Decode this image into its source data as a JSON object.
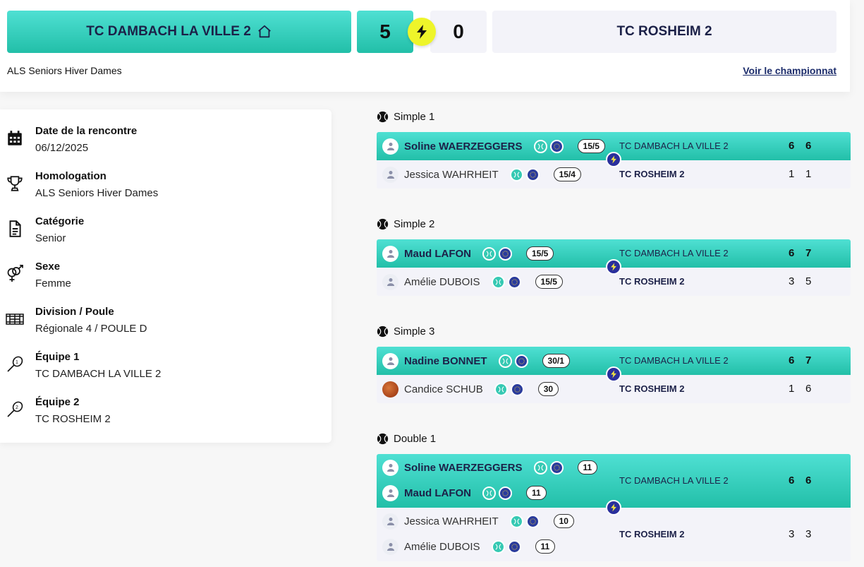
{
  "header": {
    "home_team": "TC DAMBACH LA VILLE 2",
    "away_team": "TC ROSHEIM 2",
    "home_score": "5",
    "away_score": "0",
    "competition": "ALS Seniors Hiver Dames",
    "championship_link": "Voir le championnat"
  },
  "info": [
    {
      "title": "Date de la rencontre",
      "value": "06/12/2025",
      "icon": "calendar-icon"
    },
    {
      "title": "Homologation",
      "value": "ALS Seniors Hiver Dames",
      "icon": "trophy-icon"
    },
    {
      "title": "Catégorie",
      "value": "Senior",
      "icon": "document-icon"
    },
    {
      "title": "Sexe",
      "value": "Femme",
      "icon": "gender-icon"
    },
    {
      "title": "Division / Poule",
      "value": "Régionale 4 / POULE D",
      "icon": "court-icon"
    },
    {
      "title": "Équipe 1",
      "value": "TC DAMBACH LA VILLE 2",
      "icon": "racket-1-icon"
    },
    {
      "title": "Équipe 2",
      "value": "TC ROSHEIM 2",
      "icon": "racket-2-icon"
    }
  ],
  "matches": [
    {
      "title": "Simple 1",
      "winner": {
        "players": [
          {
            "name": "Soline WAERZEGGERS",
            "rank": "15/5"
          }
        ],
        "club": "TC DAMBACH LA VILLE 2",
        "sets": [
          "6",
          "6"
        ]
      },
      "loser": {
        "players": [
          {
            "name": "Jessica WAHRHEIT",
            "rank": "15/4"
          }
        ],
        "club": "TC ROSHEIM 2",
        "sets": [
          "1",
          "1"
        ]
      }
    },
    {
      "title": "Simple 2",
      "winner": {
        "players": [
          {
            "name": "Maud LAFON",
            "rank": "15/5"
          }
        ],
        "club": "TC DAMBACH LA VILLE 2",
        "sets": [
          "6",
          "7"
        ]
      },
      "loser": {
        "players": [
          {
            "name": "Amélie DUBOIS",
            "rank": "15/5"
          }
        ],
        "club": "TC ROSHEIM 2",
        "sets": [
          "3",
          "5"
        ]
      }
    },
    {
      "title": "Simple 3",
      "winner": {
        "players": [
          {
            "name": "Nadine BONNET",
            "rank": "30/1"
          }
        ],
        "club": "TC DAMBACH LA VILLE 2",
        "sets": [
          "6",
          "7"
        ]
      },
      "loser": {
        "players": [
          {
            "name": "Candice SCHUB",
            "rank": "30"
          }
        ],
        "club": "TC ROSHEIM 2",
        "sets": [
          "1",
          "6"
        ]
      }
    },
    {
      "title": "Double 1",
      "winner": {
        "players": [
          {
            "name": "Soline WAERZEGGERS",
            "rank": "11"
          },
          {
            "name": "Maud LAFON",
            "rank": "11"
          }
        ],
        "club": "TC DAMBACH LA VILLE 2",
        "sets": [
          "6",
          "6"
        ]
      },
      "loser": {
        "players": [
          {
            "name": "Jessica WAHRHEIT",
            "rank": "10"
          },
          {
            "name": "Amélie DUBOIS",
            "rank": "11"
          }
        ],
        "club": "TC ROSHEIM 2",
        "sets": [
          "3",
          "3"
        ]
      }
    }
  ],
  "colors": {
    "accent": "#2fcfbb",
    "navy": "#1c2148",
    "bolt_yellow": "#eef52a",
    "bolt_blue": "#2a2f9c",
    "row_grey": "#f3f3f9"
  }
}
